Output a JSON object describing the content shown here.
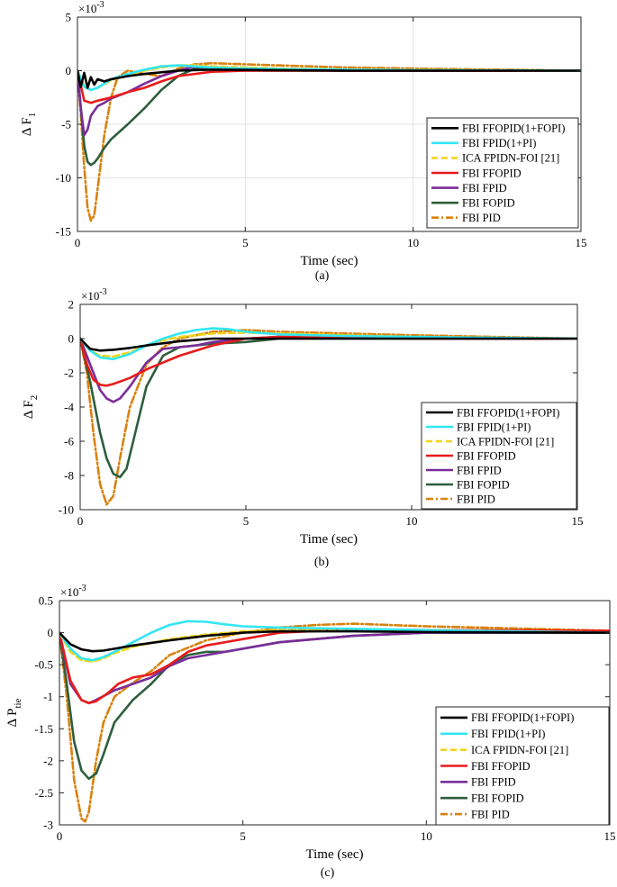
{
  "figure": "three-panel response plot",
  "legend_entries": [
    "FBI FFOPID(1+FOPI)",
    "FBI FPID(1+PI)",
    "ICA FPIDN-FOI [21]",
    "FBI FFOPID",
    "FBI FPID",
    "FBI FOPID",
    "FBI PID"
  ],
  "series_styles": [
    {
      "name": "FBI FFOPID(1+FOPI)",
      "color": "#000000",
      "dash": "solid"
    },
    {
      "name": "FBI FPID(1+PI)",
      "color": "#33e6f2",
      "dash": "solid"
    },
    {
      "name": "ICA FPIDN-FOI [21]",
      "color": "#f2d41a",
      "dash": "dashed"
    },
    {
      "name": "FBI FFOPID",
      "color": "#e81b1b",
      "dash": "solid"
    },
    {
      "name": "FBI FPID",
      "color": "#7a2d99",
      "dash": "solid"
    },
    {
      "name": "FBI FOPID",
      "color": "#2e5e3e",
      "dash": "solid"
    },
    {
      "name": "FBI PID",
      "color": "#d9820f",
      "dash": "dashdot"
    }
  ],
  "chart_data": [
    {
      "type": "line",
      "panel": "(a)",
      "caption": "(a)",
      "ylabel": {
        "main": "Δ F",
        "sub": "1"
      },
      "xlabel": "Time (sec)",
      "exponent": "×10",
      "exponent_power": "-3",
      "xlim": [
        0,
        15
      ],
      "ylim": [
        -15,
        5
      ],
      "xticks": [
        0,
        5,
        10,
        15
      ],
      "yticks": [
        -15,
        -10,
        -5,
        0,
        5
      ],
      "grid": true,
      "legend_position": "right",
      "series": [
        {
          "name": "FBI FFOPID(1+FOPI)",
          "x": [
            0,
            0.1,
            0.2,
            0.3,
            0.4,
            0.5,
            0.6,
            0.8,
            1,
            1.5,
            2,
            3,
            4,
            6,
            8,
            10,
            15
          ],
          "y": [
            0,
            -1.5,
            -0.2,
            -1.6,
            -0.6,
            -1.3,
            -0.8,
            -1.0,
            -0.8,
            -0.5,
            -0.3,
            0,
            0.1,
            0.05,
            0,
            0,
            0
          ]
        },
        {
          "name": "FBI FPID(1+PI)",
          "x": [
            0,
            0.2,
            0.4,
            0.6,
            1,
            1.5,
            2,
            2.5,
            3,
            3.5,
            4,
            5,
            6,
            8,
            10,
            15
          ],
          "y": [
            0,
            -1.5,
            -1.8,
            -1.6,
            -0.8,
            -0.3,
            0.1,
            0.4,
            0.5,
            0.4,
            0.3,
            0.2,
            0.15,
            0.1,
            0.05,
            0
          ]
        },
        {
          "name": "ICA FPIDN-FOI [21]",
          "x": [
            0,
            0.2,
            0.4,
            0.6,
            1,
            1.5,
            2,
            2.5,
            3,
            3.5,
            4,
            5,
            6,
            8,
            10,
            15
          ],
          "y": [
            0,
            -1.4,
            -1.8,
            -1.6,
            -0.9,
            -0.4,
            0,
            0.3,
            0.5,
            0.5,
            0.4,
            0.3,
            0.2,
            0.1,
            0.05,
            0
          ]
        },
        {
          "name": "FBI FFOPID",
          "x": [
            0,
            0.2,
            0.4,
            0.6,
            1,
            1.5,
            2,
            2.5,
            3,
            4,
            5,
            6,
            8,
            10,
            15
          ],
          "y": [
            0,
            -2.8,
            -3.0,
            -2.8,
            -2.5,
            -2.0,
            -1.6,
            -1.0,
            -0.5,
            -0.1,
            0,
            0,
            0,
            0,
            0
          ]
        },
        {
          "name": "FBI FPID",
          "x": [
            0,
            0.1,
            0.2,
            0.3,
            0.4,
            0.6,
            0.8,
            1,
            1.5,
            2,
            2.5,
            3,
            3.5,
            4,
            5,
            6,
            8,
            10,
            15
          ],
          "y": [
            0,
            -3.5,
            -6.0,
            -5.5,
            -4.2,
            -3.3,
            -3.0,
            -2.6,
            -2.0,
            -1.2,
            -0.5,
            0,
            0.4,
            0.3,
            0.2,
            0.1,
            0,
            0,
            0
          ]
        },
        {
          "name": "FBI FOPID",
          "x": [
            0,
            0.2,
            0.3,
            0.4,
            0.5,
            0.6,
            0.8,
            1,
            1.5,
            2,
            2.5,
            3,
            3.5,
            4,
            5,
            6,
            8,
            10,
            15
          ],
          "y": [
            0,
            -7.0,
            -8.5,
            -8.8,
            -8.6,
            -8.2,
            -7.2,
            -6.4,
            -5.0,
            -3.5,
            -1.8,
            -0.5,
            0.2,
            0.1,
            0,
            0,
            0,
            0,
            0
          ]
        },
        {
          "name": "FBI PID",
          "x": [
            0,
            0.1,
            0.2,
            0.3,
            0.4,
            0.5,
            0.6,
            0.8,
            1,
            1.2,
            1.5,
            2,
            2.5,
            3,
            3.5,
            4,
            5,
            6,
            8,
            10,
            15
          ],
          "y": [
            0,
            -4.0,
            -9.0,
            -12.8,
            -14.0,
            -13.5,
            -11.0,
            -6.0,
            -2.5,
            -0.6,
            0,
            -0.3,
            -0.5,
            0.2,
            0.6,
            0.7,
            0.6,
            0.5,
            0.3,
            0.2,
            0
          ]
        }
      ]
    },
    {
      "type": "line",
      "panel": "(b)",
      "caption": "(b)",
      "ylabel": {
        "main": "Δ F",
        "sub": "2"
      },
      "xlabel": "Time (sec)",
      "exponent": "×10",
      "exponent_power": "-3",
      "xlim": [
        0,
        15
      ],
      "ylim": [
        -10,
        2
      ],
      "xticks": [
        0,
        5,
        10,
        15
      ],
      "yticks": [
        -10,
        -8,
        -6,
        -4,
        -2,
        0,
        2
      ],
      "grid": false,
      "legend_position": "right",
      "series": [
        {
          "name": "FBI FFOPID(1+FOPI)",
          "x": [
            0,
            0.3,
            0.6,
            1,
            1.5,
            2,
            3,
            4,
            5,
            6,
            8,
            10,
            15
          ],
          "y": [
            0,
            -0.6,
            -0.7,
            -0.65,
            -0.55,
            -0.4,
            -0.15,
            0,
            0,
            0,
            0,
            0,
            0
          ]
        },
        {
          "name": "FBI FPID(1+PI)",
          "x": [
            0,
            0.3,
            0.6,
            1,
            1.5,
            2,
            2.5,
            3,
            3.5,
            4,
            4.5,
            5,
            6,
            8,
            10,
            15
          ],
          "y": [
            0,
            -0.7,
            -1.1,
            -1.2,
            -0.9,
            -0.4,
            0,
            0.3,
            0.5,
            0.6,
            0.55,
            0.4,
            0.25,
            0.15,
            0.1,
            0
          ]
        },
        {
          "name": "ICA FPIDN-FOI [21]",
          "x": [
            0,
            0.3,
            0.6,
            1,
            1.5,
            2,
            2.5,
            3,
            4,
            5,
            6,
            8,
            10,
            15
          ],
          "y": [
            0,
            -0.7,
            -1.0,
            -1.05,
            -0.8,
            -0.4,
            -0.1,
            0.1,
            0.3,
            0.35,
            0.3,
            0.2,
            0.1,
            0
          ]
        },
        {
          "name": "FBI FFOPID",
          "x": [
            0,
            0.2,
            0.4,
            0.6,
            0.8,
            1,
            1.5,
            2,
            3,
            4,
            5,
            6,
            8,
            10,
            15
          ],
          "y": [
            0,
            -1.5,
            -2.4,
            -2.7,
            -2.75,
            -2.65,
            -2.3,
            -1.8,
            -1.0,
            -0.4,
            0,
            0.1,
            0.05,
            0,
            0
          ]
        },
        {
          "name": "FBI FPID",
          "x": [
            0,
            0.3,
            0.6,
            0.8,
            1,
            1.2,
            1.5,
            2,
            2.5,
            3,
            3.5,
            4,
            5,
            6,
            8,
            10,
            15
          ],
          "y": [
            0,
            -1.5,
            -3.0,
            -3.5,
            -3.7,
            -3.5,
            -2.8,
            -1.4,
            -0.6,
            -0.5,
            -0.4,
            -0.2,
            0,
            0.1,
            0.05,
            0,
            0
          ]
        },
        {
          "name": "FBI FOPID",
          "x": [
            0,
            0.3,
            0.6,
            0.8,
            1,
            1.2,
            1.4,
            1.6,
            2,
            2.5,
            3,
            4,
            5,
            6,
            8,
            10,
            15
          ],
          "y": [
            0,
            -2.5,
            -5.5,
            -7.0,
            -7.9,
            -8.1,
            -7.6,
            -6.0,
            -2.8,
            -1.0,
            -0.5,
            -0.3,
            -0.2,
            0,
            0,
            0,
            0
          ]
        },
        {
          "name": "FBI PID",
          "x": [
            0,
            0.2,
            0.4,
            0.6,
            0.8,
            1,
            1.2,
            1.5,
            2,
            2.5,
            3,
            4,
            5,
            6,
            8,
            10,
            15
          ],
          "y": [
            0,
            -2.0,
            -5.5,
            -8.5,
            -9.7,
            -9.2,
            -7.0,
            -4.0,
            -1.5,
            -0.5,
            0,
            0.4,
            0.5,
            0.4,
            0.3,
            0.2,
            0
          ]
        }
      ]
    },
    {
      "type": "line",
      "panel": "(c)",
      "caption": "(c)",
      "ylabel": {
        "main": "Δ P",
        "sub": "tie"
      },
      "xlabel": "Time (sec)",
      "exponent": "×10",
      "exponent_power": "-3",
      "xlim": [
        0,
        15
      ],
      "ylim": [
        -3,
        0.5
      ],
      "xticks": [
        0,
        5,
        10,
        15
      ],
      "yticks": [
        -3,
        -2.5,
        -2,
        -1.5,
        -1,
        -0.5,
        0,
        0.5
      ],
      "grid": false,
      "legend_position": "right",
      "series": [
        {
          "name": "FBI FFOPID(1+FOPI)",
          "x": [
            0,
            0.3,
            0.6,
            0.9,
            1.2,
            1.5,
            2,
            3,
            4,
            5,
            6,
            8,
            10,
            15
          ],
          "y": [
            0,
            -0.18,
            -0.26,
            -0.29,
            -0.28,
            -0.25,
            -0.2,
            -0.12,
            -0.05,
            0,
            0.02,
            0.02,
            0.01,
            0
          ]
        },
        {
          "name": "FBI FPID(1+PI)",
          "x": [
            0,
            0.3,
            0.6,
            0.9,
            1.2,
            1.5,
            2,
            2.5,
            3,
            3.5,
            4,
            4.5,
            5,
            6,
            8,
            10,
            15
          ],
          "y": [
            0,
            -0.25,
            -0.4,
            -0.43,
            -0.38,
            -0.3,
            -0.15,
            0,
            0.12,
            0.18,
            0.17,
            0.13,
            0.1,
            0.08,
            0.06,
            0.04,
            0
          ]
        },
        {
          "name": "ICA FPIDN-FOI [21]",
          "x": [
            0,
            0.3,
            0.6,
            0.9,
            1.2,
            1.5,
            2,
            3,
            4,
            5,
            6,
            8,
            10,
            15
          ],
          "y": [
            0,
            -0.3,
            -0.43,
            -0.45,
            -0.4,
            -0.32,
            -0.22,
            -0.1,
            -0.03,
            0.02,
            0.04,
            0.05,
            0.04,
            0
          ]
        },
        {
          "name": "FBI FFOPID",
          "x": [
            0,
            0.3,
            0.6,
            0.8,
            1,
            1.3,
            1.6,
            2,
            2.5,
            3,
            3.5,
            4,
            5,
            6,
            8,
            10,
            15
          ],
          "y": [
            0,
            -0.75,
            -1.05,
            -1.1,
            -1.07,
            -0.95,
            -0.8,
            -0.7,
            -0.65,
            -0.5,
            -0.3,
            -0.2,
            -0.1,
            0,
            0.05,
            0.04,
            0.03
          ]
        },
        {
          "name": "FBI FPID",
          "x": [
            0,
            0.3,
            0.6,
            0.8,
            1,
            1.5,
            2,
            2.5,
            3,
            3.5,
            4,
            5,
            6,
            8,
            10,
            15
          ],
          "y": [
            0,
            -0.8,
            -1.05,
            -1.1,
            -1.05,
            -0.9,
            -0.8,
            -0.7,
            -0.52,
            -0.4,
            -0.35,
            -0.25,
            -0.15,
            -0.05,
            0,
            0
          ]
        },
        {
          "name": "FBI FOPID",
          "x": [
            0,
            0.2,
            0.4,
            0.6,
            0.8,
            1,
            1.2,
            1.5,
            2,
            2.5,
            3,
            3.5,
            4,
            4.5,
            5,
            6,
            8,
            10,
            15
          ],
          "y": [
            0,
            -0.8,
            -1.7,
            -2.15,
            -2.28,
            -2.2,
            -1.9,
            -1.4,
            -1.05,
            -0.8,
            -0.5,
            -0.35,
            -0.3,
            -0.3,
            -0.25,
            -0.15,
            -0.05,
            0,
            0
          ]
        },
        {
          "name": "FBI PID",
          "x": [
            0,
            0.2,
            0.4,
            0.6,
            0.7,
            0.8,
            1,
            1.2,
            1.5,
            2,
            2.5,
            3,
            4,
            5,
            6,
            7,
            8,
            10,
            15
          ],
          "y": [
            0,
            -1.0,
            -2.3,
            -2.9,
            -2.95,
            -2.8,
            -2.0,
            -1.4,
            -1.0,
            -0.78,
            -0.6,
            -0.35,
            -0.12,
            0,
            0.08,
            0.12,
            0.14,
            0.1,
            0.03
          ]
        }
      ]
    }
  ]
}
